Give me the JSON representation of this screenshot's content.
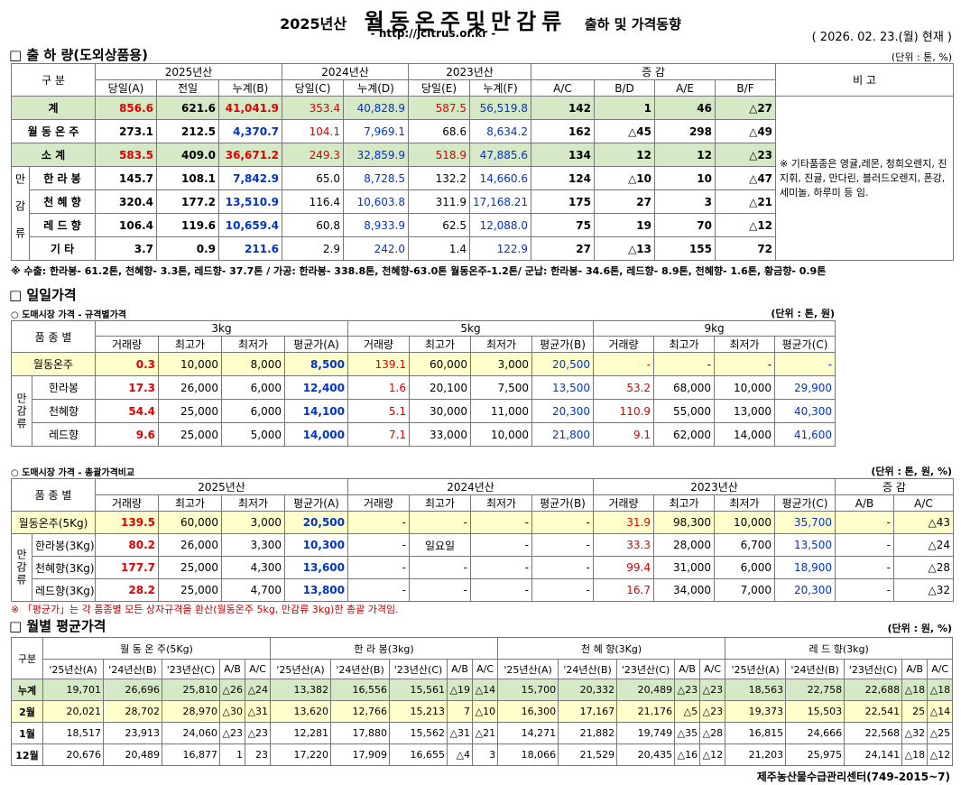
{
  "header": {
    "title_year": "2025년산",
    "title_main": "월동온주및만감류",
    "title_sub": "출하 및 가격동향",
    "url": "- http://jcitrus.or.kr -",
    "date": "( 2026. 02. 23.(월) 현재 )"
  },
  "shipment": {
    "heading": "□ 출 하 량(도외상품용)",
    "unit": "(단위 : 톤, %)",
    "header": [
      [
        "구 분",
        "2025년산",
        "2024년산",
        "2023년산",
        "증 감",
        "비 고"
      ],
      [
        "당일(A)",
        "전일",
        "누계(B)",
        "당일(C)",
        "누계(D)",
        "당일(E)",
        "누계(F)",
        "A/C",
        "B/D",
        "A/E",
        "B/F"
      ]
    ],
    "rows": [
      {
        "label": "계",
        "values": [
          "856.6",
          "621.6",
          "41,041.9",
          "353.4",
          "40,828.9",
          "587.5",
          "56,519.8",
          "142",
          "1",
          "46",
          "△27"
        ]
      },
      {
        "label": "월 동 온 주",
        "values": [
          "273.1",
          "212.5",
          "4,370.7",
          "104.1",
          "7,969.1",
          "68.6",
          "8,634.2",
          "162",
          "△45",
          "298",
          "△49"
        ]
      },
      {
        "label": "소   계",
        "values": [
          "583.5",
          "409.0",
          "36,671.2",
          "249.3",
          "32,859.9",
          "518.9",
          "47,885.6",
          "134",
          "12",
          "12",
          "△23"
        ]
      }
    ],
    "group": {
      "label": "만감류",
      "rows": [
        {
          "label": "한 라 봉",
          "values": [
            "145.7",
            "108.1",
            "7,842.9",
            "65.0",
            "8,728.5",
            "132.2",
            "14,660.6",
            "124",
            "△10",
            "10",
            "△47"
          ]
        },
        {
          "label": "천 혜 향",
          "values": [
            "320.4",
            "177.2",
            "13,510.9",
            "116.4",
            "10,603.8",
            "311.9",
            "17,168.21",
            "175",
            "27",
            "3",
            "△21"
          ]
        },
        {
          "label": "레 드 향",
          "values": [
            "106.4",
            "119.6",
            "10,659.4",
            "60.8",
            "8,933.9",
            "62.5",
            "12,088.0",
            "75",
            "19",
            "70",
            "△12"
          ]
        },
        {
          "label": "기   타",
          "values": [
            "3.7",
            "0.9",
            "211.6",
            "2.9",
            "242.0",
            "1.4",
            "122.9",
            "27",
            "△13",
            "155",
            "72"
          ]
        }
      ]
    },
    "remark": "※ 기타품종은 영귤,레몬, 청희오렌지, 진지휘, 진귤, 만다린, 블러드오렌지, 폰강,세미놀, 하루미 등 임.",
    "footnote": "※ 수출: 한라봉- 61.2톤, 천혜향- 3.3톤, 레드향- 37.7톤 / 가공: 한라봉- 338.8톤, 천혜향-63.0톤 월동온주-1.2톤/  군납: 한라봉- 34.6톤, 레드향- 8.9톤, 천혜향- 1.6톤, 황금향- 0.9톤"
  },
  "daily_price": {
    "heading": "□ 일일가격",
    "spec_table": {
      "caption": "○ 도매시장 가격 - 규격별가격",
      "unit": "(단위 : 톤, 원)",
      "header": [
        [
          "품 종 별",
          "3kg",
          "5kg",
          "9kg"
        ],
        [
          "거래량",
          "최고가",
          "최저가",
          "평균가(A)",
          "거래량",
          "최고가",
          "최저가",
          "평균가(B)",
          "거래량",
          "최고가",
          "최저가",
          "평균가(C)"
        ]
      ],
      "rows": [
        {
          "label": "월동온주",
          "values": [
            "0.3",
            "10,000",
            "8,000",
            "8,500",
            "139.1",
            "60,000",
            "3,000",
            "20,500",
            "-",
            "-",
            "-",
            "-"
          ]
        }
      ],
      "group": {
        "label": "만감류",
        "rows": [
          {
            "label": "한라봉",
            "values": [
              "17.3",
              "26,000",
              "6,000",
              "12,400",
              "1.6",
              "20,100",
              "7,500",
              "13,500",
              "53.2",
              "68,000",
              "10,000",
              "29,900"
            ]
          },
          {
            "label": "천혜향",
            "values": [
              "54.4",
              "25,000",
              "6,000",
              "14,100",
              "5.1",
              "30,000",
              "11,000",
              "20,300",
              "110.9",
              "55,000",
              "13,000",
              "40,300"
            ]
          },
          {
            "label": "레드향",
            "values": [
              "9.6",
              "25,000",
              "5,000",
              "14,000",
              "7.1",
              "33,000",
              "10,000",
              "21,800",
              "9.1",
              "62,000",
              "14,000",
              "41,600"
            ]
          }
        ]
      }
    },
    "total_table": {
      "caption": "○ 도매시장 가격 - 총괄가격비교",
      "unit": "(단위 : 톤, 원, %)",
      "header": [
        [
          "품 종 별",
          "2025년산",
          "2024년산",
          "2023년산",
          "증  감"
        ],
        [
          "거래량",
          "최고가",
          "최저가",
          "평균가(A)",
          "거래량",
          "최고가",
          "최저가",
          "평균가(B)",
          "거래량",
          "최고가",
          "최저가",
          "평균가(C)",
          "A/B",
          "A/C"
        ]
      ],
      "rows": [
        {
          "label": "월동온주(5Kg)",
          "values": [
            "139.5",
            "60,000",
            "3,000",
            "20,500",
            "-",
            "-",
            "-",
            "-",
            "31.9",
            "98,300",
            "10,000",
            "35,700",
            "-",
            "△43"
          ]
        }
      ],
      "group": {
        "label": "만감류",
        "rows": [
          {
            "label": "한라봉(3Kg)",
            "values": [
              "80.2",
              "26,000",
              "3,300",
              "10,300",
              "-",
              "일요일",
              "-",
              "-",
              "33.3",
              "28,000",
              "6,700",
              "13,500",
              "-",
              "△24"
            ]
          },
          {
            "label": "천혜향(3Kg)",
            "values": [
              "177.7",
              "25,000",
              "4,300",
              "13,600",
              "-",
              "-",
              "-",
              "-",
              "99.4",
              "31,000",
              "6,000",
              "18,900",
              "-",
              "△28"
            ]
          },
          {
            "label": "레드향(3Kg)",
            "values": [
              "28.2",
              "25,000",
              "4,700",
              "13,800",
              "-",
              "-",
              "-",
              "-",
              "16.7",
              "34,000",
              "7,000",
              "20,300",
              "-",
              "△32"
            ]
          }
        ]
      },
      "note": "※ 「평균가」는 각 품종별 모든 상자규격을 환산(월동온주 5kg, 만감류 3kg)한 총괄 가격임."
    }
  },
  "monthly_price": {
    "heading": "□ 월별 평균가격",
    "unit": "(단위 : 원, %)",
    "header": [
      [
        "구분",
        "월 동 온 주(5Kg)",
        "한 라 봉(3kg)",
        "천 혜 향(3Kg)",
        "레 드 향(3kg)"
      ],
      [
        "'25년산(A)",
        "'24년산(B)",
        "'23년산(C)",
        "A/B",
        "A/C",
        "'25년산(A)",
        "'24년산(B)",
        "'23년산(C)",
        "A/B",
        "A/C",
        "'25년산(A)",
        "'24년산(B)",
        "'23년산(C)",
        "A/B",
        "A/C",
        "'25년산(A)",
        "'24년산(B)",
        "'23년산(C)",
        "A/B",
        "A/C"
      ]
    ],
    "rows": [
      {
        "label": "누계",
        "values": [
          "19,701",
          "26,696",
          "25,810",
          "△26",
          "△24",
          "13,382",
          "16,556",
          "15,561",
          "△19",
          "△14",
          "15,700",
          "20,332",
          "20,489",
          "△23",
          "△23",
          "18,563",
          "22,758",
          "22,688",
          "△18",
          "△18"
        ]
      },
      {
        "label": "2월",
        "values": [
          "20,021",
          "28,702",
          "28,970",
          "△30",
          "△31",
          "13,620",
          "12,766",
          "15,213",
          "7",
          "△10",
          "16,300",
          "17,167",
          "21,176",
          "△5",
          "△23",
          "19,373",
          "15,503",
          "22,541",
          "25",
          "△14"
        ]
      },
      {
        "label": "1월",
        "values": [
          "18,517",
          "23,913",
          "24,060",
          "△23",
          "△23",
          "12,281",
          "17,880",
          "15,562",
          "△31",
          "△21",
          "14,271",
          "21,882",
          "19,749",
          "△35",
          "△28",
          "16,815",
          "24,666",
          "22,568",
          "△32",
          "△25"
        ]
      },
      {
        "label": "12월",
        "values": [
          "20,676",
          "20,489",
          "16,877",
          "1",
          "23",
          "17,220",
          "17,909",
          "16,655",
          "△4",
          "3",
          "18,066",
          "21,529",
          "20,435",
          "△16",
          "△12",
          "21,203",
          "25,975",
          "24,141",
          "△18",
          "△12"
        ]
      }
    ]
  },
  "footer": "제주농산물수급관리센터(749-2015~7)"
}
